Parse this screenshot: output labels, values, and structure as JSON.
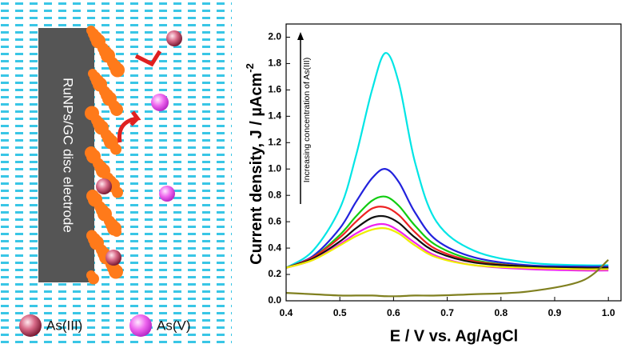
{
  "diagram": {
    "electrode_label": "RuNPs/GC disc electrode",
    "legend": [
      "As(III)",
      "As(V)"
    ]
  },
  "chart_data": {
    "type": "line",
    "ylabel": "Current density, J / µAcm",
    "ylabel_sup": "-2",
    "xlabel": "E / V vs. Ag/AgCl",
    "annotation": "Increasing concentration of As(III)",
    "x": [
      0.4,
      0.45,
      0.5,
      0.53,
      0.56,
      0.585,
      0.61,
      0.64,
      0.68,
      0.75,
      0.85,
      0.95,
      1.0
    ],
    "series": [
      {
        "color": "#00e5e5",
        "values": [
          0.25,
          0.38,
          0.7,
          1.1,
          1.6,
          1.88,
          1.65,
          1.05,
          0.6,
          0.38,
          0.29,
          0.27,
          0.27
        ]
      },
      {
        "color": "#2222dd",
        "values": [
          0.25,
          0.34,
          0.55,
          0.75,
          0.93,
          1.0,
          0.9,
          0.67,
          0.46,
          0.33,
          0.27,
          0.26,
          0.26
        ]
      },
      {
        "color": "#11cc11",
        "values": [
          0.25,
          0.33,
          0.5,
          0.64,
          0.76,
          0.79,
          0.72,
          0.57,
          0.42,
          0.31,
          0.26,
          0.25,
          0.25
        ]
      },
      {
        "color": "#ee2222",
        "values": [
          0.25,
          0.33,
          0.48,
          0.6,
          0.7,
          0.71,
          0.65,
          0.52,
          0.39,
          0.3,
          0.26,
          0.25,
          0.25
        ]
      },
      {
        "color": "#111111",
        "values": [
          0.25,
          0.32,
          0.45,
          0.55,
          0.63,
          0.64,
          0.59,
          0.48,
          0.37,
          0.29,
          0.26,
          0.25,
          0.25
        ]
      },
      {
        "color": "#ee22ee",
        "values": [
          0.25,
          0.31,
          0.43,
          0.51,
          0.57,
          0.58,
          0.53,
          0.44,
          0.34,
          0.27,
          0.24,
          0.23,
          0.23
        ]
      },
      {
        "color": "#eeee00",
        "values": [
          0.25,
          0.31,
          0.42,
          0.49,
          0.54,
          0.55,
          0.51,
          0.42,
          0.33,
          0.27,
          0.25,
          0.24,
          0.24
        ]
      },
      {
        "color": "#808020",
        "values": [
          0.06,
          0.05,
          0.04,
          0.04,
          0.04,
          0.035,
          0.035,
          0.04,
          0.04,
          0.05,
          0.07,
          0.15,
          0.31
        ]
      }
    ],
    "xlim": [
      0.4,
      1.025
    ],
    "ylim": [
      0,
      2.1
    ],
    "xticks": [
      {
        "value": 0.4,
        "label": "0.4"
      },
      {
        "value": 0.5,
        "label": "0.5"
      },
      {
        "value": 0.6,
        "label": "0.6"
      },
      {
        "value": 0.7,
        "label": "0.7"
      },
      {
        "value": 0.8,
        "label": "0.8"
      },
      {
        "value": 0.9,
        "label": "0.9"
      },
      {
        "value": 1.0,
        "label": "1.0"
      }
    ],
    "yticks": [
      {
        "value": 0,
        "label": "0.0"
      },
      0.2,
      0.4,
      0.6,
      0.8,
      {
        "value": 1.0,
        "label": "1.0"
      },
      1.2,
      1.4,
      1.6,
      1.8,
      {
        "value": 2.0,
        "label": "2.0"
      }
    ]
  }
}
